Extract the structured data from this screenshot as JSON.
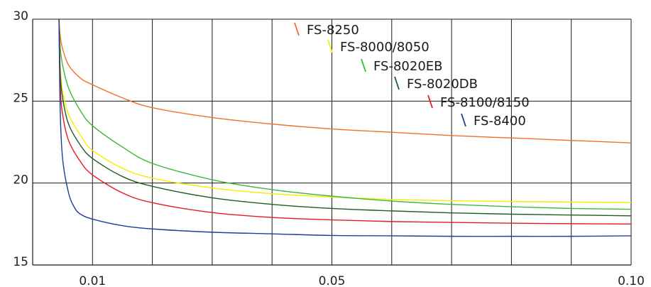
{
  "chart_data": {
    "type": "line",
    "title": "",
    "xlabel": "",
    "ylabel": "",
    "xlim": [
      0.0,
      0.1
    ],
    "ylim": [
      15,
      30
    ],
    "x_ticks": [
      {
        "value": 0.01,
        "label": "0.01"
      },
      {
        "value": 0.05,
        "label": "0.05"
      },
      {
        "value": 0.1,
        "label": "0.10"
      }
    ],
    "y_ticks": [
      {
        "value": 15,
        "label": "15"
      },
      {
        "value": 20,
        "label": "20"
      },
      {
        "value": 25,
        "label": "25"
      },
      {
        "value": 30,
        "label": "30"
      }
    ],
    "x_gridlines": [
      0.01,
      0.02,
      0.03,
      0.04,
      0.05,
      0.06,
      0.07,
      0.08,
      0.09,
      0.1
    ],
    "y_gridlines": [
      15,
      20,
      25,
      30
    ],
    "grid": true,
    "legend_position": "top-right, inline diagonal",
    "series": [
      {
        "name": "FS-8250",
        "color": "#f07030",
        "points": [
          [
            0.0044,
            30
          ],
          [
            0.0046,
            29.0
          ],
          [
            0.005,
            28.2
          ],
          [
            0.006,
            27.2
          ],
          [
            0.008,
            26.4
          ],
          [
            0.01,
            26.0
          ],
          [
            0.015,
            25.2
          ],
          [
            0.02,
            24.6
          ],
          [
            0.03,
            24.0
          ],
          [
            0.04,
            23.6
          ],
          [
            0.05,
            23.3
          ],
          [
            0.06,
            23.1
          ],
          [
            0.07,
            22.9
          ],
          [
            0.08,
            22.75
          ],
          [
            0.09,
            22.6
          ],
          [
            0.1,
            22.45
          ]
        ]
      },
      {
        "name": "FS-8000/8050",
        "color": "#f3ee00",
        "points": [
          [
            0.0044,
            30
          ],
          [
            0.0046,
            27.2
          ],
          [
            0.005,
            25.6
          ],
          [
            0.006,
            24.2
          ],
          [
            0.008,
            22.9
          ],
          [
            0.01,
            22.0
          ],
          [
            0.015,
            20.9
          ],
          [
            0.02,
            20.3
          ],
          [
            0.03,
            19.7
          ],
          [
            0.04,
            19.35
          ],
          [
            0.05,
            19.15
          ],
          [
            0.06,
            19.0
          ],
          [
            0.07,
            18.92
          ],
          [
            0.08,
            18.87
          ],
          [
            0.09,
            18.84
          ],
          [
            0.1,
            18.82
          ]
        ]
      },
      {
        "name": "FS-8020EB",
        "color": "#3cb838",
        "points": [
          [
            0.0044,
            30
          ],
          [
            0.0046,
            28.3
          ],
          [
            0.005,
            27.2
          ],
          [
            0.006,
            25.8
          ],
          [
            0.008,
            24.4
          ],
          [
            0.01,
            23.5
          ],
          [
            0.015,
            22.2
          ],
          [
            0.02,
            21.2
          ],
          [
            0.03,
            20.2
          ],
          [
            0.04,
            19.6
          ],
          [
            0.05,
            19.2
          ],
          [
            0.06,
            18.9
          ],
          [
            0.07,
            18.7
          ],
          [
            0.08,
            18.55
          ],
          [
            0.09,
            18.45
          ],
          [
            0.1,
            18.4
          ]
        ]
      },
      {
        "name": "FS-8020DB",
        "color": "#1e5c28",
        "points": [
          [
            0.0044,
            30
          ],
          [
            0.0046,
            26.8
          ],
          [
            0.005,
            25.2
          ],
          [
            0.006,
            23.6
          ],
          [
            0.008,
            22.3
          ],
          [
            0.01,
            21.5
          ],
          [
            0.015,
            20.4
          ],
          [
            0.02,
            19.8
          ],
          [
            0.03,
            19.1
          ],
          [
            0.04,
            18.7
          ],
          [
            0.05,
            18.45
          ],
          [
            0.06,
            18.3
          ],
          [
            0.07,
            18.18
          ],
          [
            0.08,
            18.1
          ],
          [
            0.09,
            18.05
          ],
          [
            0.1,
            18.0
          ]
        ]
      },
      {
        "name": "FS-8100/8150",
        "color": "#e51b23",
        "points": [
          [
            0.0044,
            30
          ],
          [
            0.0046,
            26.0
          ],
          [
            0.005,
            24.2
          ],
          [
            0.006,
            22.6
          ],
          [
            0.008,
            21.3
          ],
          [
            0.01,
            20.5
          ],
          [
            0.015,
            19.4
          ],
          [
            0.02,
            18.8
          ],
          [
            0.03,
            18.2
          ],
          [
            0.04,
            17.9
          ],
          [
            0.05,
            17.75
          ],
          [
            0.06,
            17.65
          ],
          [
            0.07,
            17.6
          ],
          [
            0.08,
            17.55
          ],
          [
            0.09,
            17.52
          ],
          [
            0.1,
            17.5
          ]
        ]
      },
      {
        "name": "FS-8400",
        "color": "#1d3f94",
        "points": [
          [
            0.0044,
            30
          ],
          [
            0.0046,
            24.5
          ],
          [
            0.005,
            21.5
          ],
          [
            0.006,
            19.4
          ],
          [
            0.007,
            18.5
          ],
          [
            0.008,
            18.1
          ],
          [
            0.01,
            17.8
          ],
          [
            0.015,
            17.4
          ],
          [
            0.02,
            17.2
          ],
          [
            0.03,
            17.0
          ],
          [
            0.04,
            16.9
          ],
          [
            0.05,
            16.8
          ],
          [
            0.06,
            16.78
          ],
          [
            0.07,
            16.75
          ],
          [
            0.08,
            16.75
          ],
          [
            0.09,
            16.75
          ],
          [
            0.1,
            16.78
          ]
        ]
      }
    ]
  }
}
